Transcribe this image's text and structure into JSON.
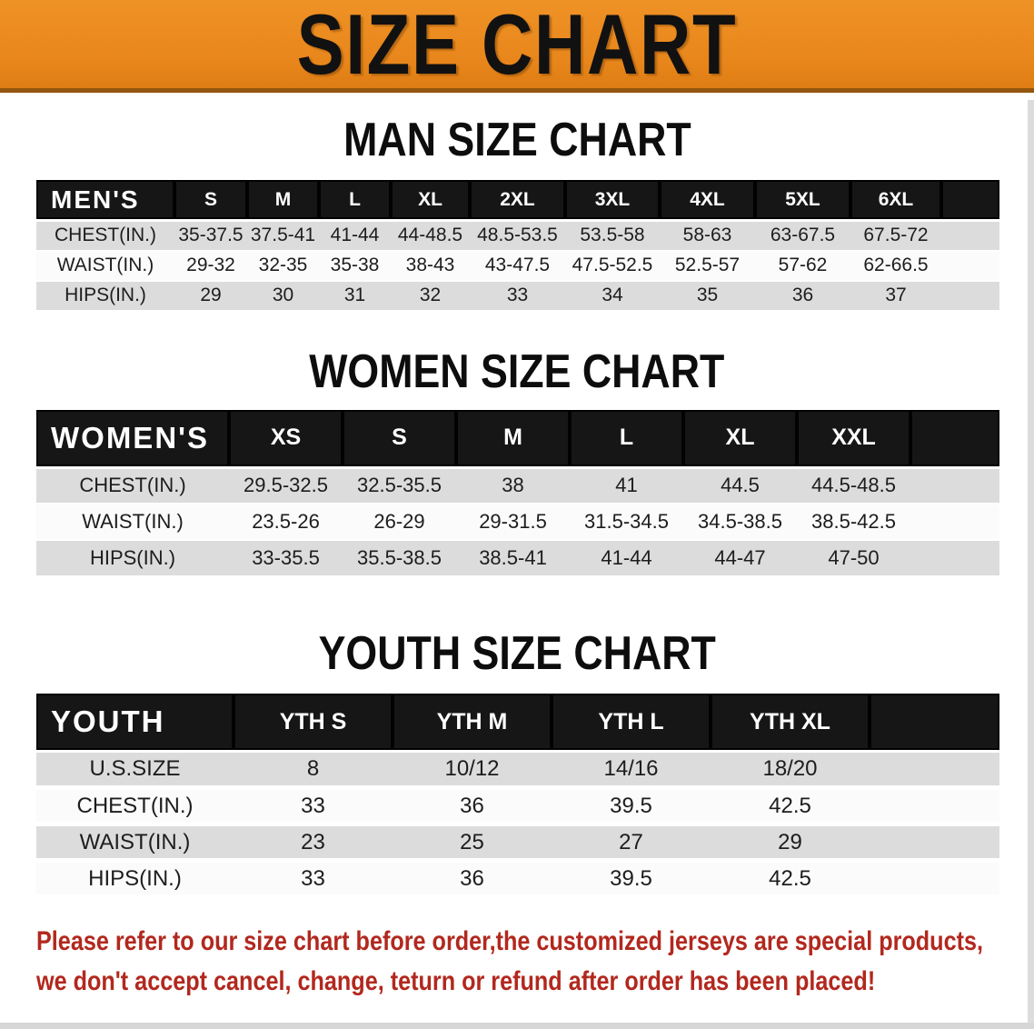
{
  "banner": {
    "title": "SIZE CHART"
  },
  "colors": {
    "banner_orange": "#e8861b",
    "banner_orange_light": "#ef9226",
    "banner_orange_dark": "#dd7d13",
    "banner_edge": "#94560e",
    "header_black": "#161616",
    "stripe_gray": "#dcdcdc",
    "stripe_white": "#fbfbfb",
    "text_dark": "#1d1d1d",
    "disclaimer_red": "#b2281e"
  },
  "sections": [
    {
      "title": "MAN SIZE CHART"
    },
    {
      "title": "WOMEN SIZE CHART"
    },
    {
      "title": "YOUTH SIZE CHART"
    }
  ],
  "tables": [
    {
      "name": "MEN'S",
      "columns": [
        "S",
        "M",
        "L",
        "XL",
        "2XL",
        "3XL",
        "4XL",
        "5XL",
        "6XL"
      ],
      "rows": [
        {
          "label": "CHEST(IN.)",
          "values": [
            "35-37.5",
            "37.5-41",
            "41-44",
            "44-48.5",
            "48.5-53.5",
            "53.5-58",
            "58-63",
            "63-67.5",
            "67.5-72"
          ]
        },
        {
          "label": "WAIST(IN.)",
          "values": [
            "29-32",
            "32-35",
            "35-38",
            "38-43",
            "43-47.5",
            "47.5-52.5",
            "52.5-57",
            "57-62",
            "62-66.5"
          ]
        },
        {
          "label": "HIPS(IN.)",
          "values": [
            "29",
            "30",
            "31",
            "32",
            "33",
            "34",
            "35",
            "36",
            "37"
          ]
        }
      ]
    },
    {
      "name": "WOMEN'S",
      "columns": [
        "XS",
        "S",
        "M",
        "L",
        "XL",
        "XXL"
      ],
      "rows": [
        {
          "label": "CHEST(IN.)",
          "values": [
            "29.5-32.5",
            "32.5-35.5",
            "38",
            "41",
            "44.5",
            "44.5-48.5"
          ]
        },
        {
          "label": "WAIST(IN.)",
          "values": [
            "23.5-26",
            "26-29",
            "29-31.5",
            "31.5-34.5",
            "34.5-38.5",
            "38.5-42.5"
          ]
        },
        {
          "label": "HIPS(IN.)",
          "values": [
            "33-35.5",
            "35.5-38.5",
            "38.5-41",
            "41-44",
            "44-47",
            "47-50"
          ]
        }
      ]
    },
    {
      "name": "YOUTH",
      "columns": [
        "YTH S",
        "YTH M",
        "YTH L",
        "YTH XL"
      ],
      "rows": [
        {
          "label": "U.S.SIZE",
          "values": [
            "8",
            "10/12",
            "14/16",
            "18/20"
          ]
        },
        {
          "label": "CHEST(IN.)",
          "values": [
            "33",
            "36",
            "39.5",
            "42.5"
          ]
        },
        {
          "label": "WAIST(IN.)",
          "values": [
            "23",
            "25",
            "27",
            "29"
          ]
        },
        {
          "label": "HIPS(IN.)",
          "values": [
            "33",
            "36",
            "39.5",
            "42.5"
          ]
        }
      ]
    }
  ],
  "disclaimer": {
    "line1": "Please refer to our size chart before order,the customized jerseys are special products,",
    "line2": "we don't accept cancel, change, teturn or refund after order has been placed!"
  }
}
